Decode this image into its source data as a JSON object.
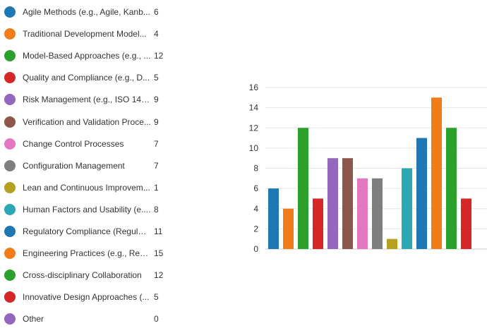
{
  "chart_data": {
    "type": "bar",
    "title": "",
    "xlabel": "",
    "ylabel": "",
    "ylim": [
      0,
      16
    ],
    "yticks": [
      0,
      2,
      4,
      6,
      8,
      10,
      12,
      14,
      16
    ],
    "grid": true,
    "legend": "left",
    "categories": [
      "Agile Methods (e.g., Agile, Kanb...",
      "Traditional Development Model...",
      "Model-Based Approaches (e.g., ...",
      "Quality and Compliance (e.g., D...",
      "Risk Management (e.g., ISO 149...",
      "Verification and Validation Proce...",
      "Change Control Processes",
      "Configuration Management",
      "Lean and Continuous Improvem...",
      "Human Factors and Usability (e....",
      "Regulatory Compliance (Regulat...",
      "Engineering Practices (e.g., Requ...",
      "Cross-disciplinary Collaboration",
      "Innovative Design Approaches (...",
      "Other"
    ],
    "values": [
      6,
      4,
      12,
      5,
      9,
      9,
      7,
      7,
      1,
      8,
      11,
      15,
      12,
      5,
      0
    ],
    "colors": [
      "#1f77b4",
      "#f07d1a",
      "#2ca02c",
      "#d62728",
      "#9467bd",
      "#8c564b",
      "#e377c2",
      "#7f7f7f",
      "#b5a020",
      "#2aa9b5",
      "#1f77b4",
      "#f07d1a",
      "#2ca02c",
      "#d62728",
      "#9467bd"
    ]
  }
}
